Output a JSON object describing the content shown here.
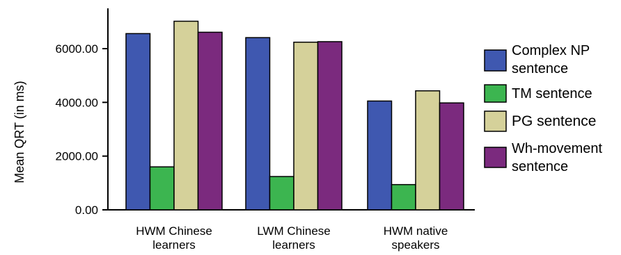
{
  "chart_data": {
    "type": "bar",
    "title": "",
    "xlabel": "",
    "ylabel": "Mean QRT (in ms)",
    "ylim": [
      0,
      7500
    ],
    "yticks": [
      0,
      2000,
      4000,
      6000
    ],
    "ytick_labels": [
      "0.00",
      "2000.00",
      "4000.00",
      "6000.00"
    ],
    "grid": false,
    "legend_position": "right",
    "categories": [
      [
        "HWM Chinese",
        "learners"
      ],
      [
        "LWM Chinese",
        "learners"
      ],
      [
        "HWM native",
        "speakers"
      ]
    ],
    "series": [
      {
        "name": [
          "Complex NP",
          "sentence"
        ],
        "color": "#3F58B0",
        "values": [
          6560,
          6410,
          4050
        ]
      },
      {
        "name": [
          "TM sentence"
        ],
        "color": "#3CB550",
        "values": [
          1600,
          1240,
          940
        ]
      },
      {
        "name": [
          "PG sentence"
        ],
        "color": "#D5D19A",
        "values": [
          7020,
          6240,
          4430
        ]
      },
      {
        "name": [
          "Wh-movement",
          "sentence"
        ],
        "color": "#7B2A7E",
        "values": [
          6610,
          6260,
          3980
        ]
      }
    ]
  }
}
